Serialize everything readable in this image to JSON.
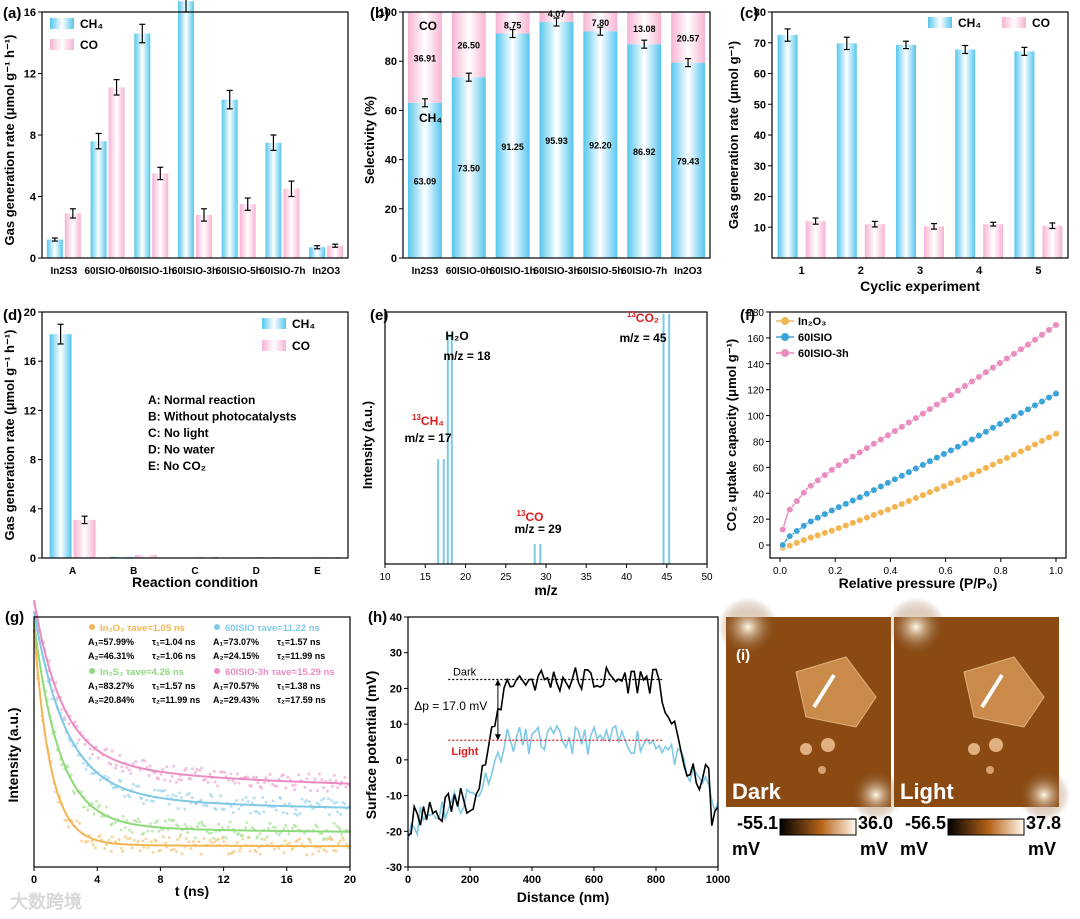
{
  "colors": {
    "ch4": "#55c6ee",
    "co": "#f7b3d2",
    "black": "#000000",
    "orange": "#f2b552",
    "blue": "#3ba3d8",
    "pink": "#ea8cc2",
    "green": "#8ed97a",
    "lightblue": "#7fc8e6",
    "red": "#e01c1c"
  },
  "chart_data": [
    {
      "panel": "(a)",
      "type": "bar",
      "ylabel": "Gas generation rate (μmol g⁻¹ h⁻¹)",
      "ylim": [
        0,
        16
      ],
      "yticks": [
        0,
        4,
        8,
        12,
        16
      ],
      "categories": [
        "In2S3",
        "60ISIO-0h",
        "60ISIO-1h",
        "60ISIO-3h",
        "60ISIO-5h",
        "60ISIO-7h",
        "In2O3"
      ],
      "series": [
        {
          "name": "CH₄",
          "values": [
            1.2,
            7.6,
            14.6,
            16.7,
            10.3,
            7.5,
            0.7
          ],
          "errors": [
            0.1,
            0.5,
            0.6,
            0.7,
            0.6,
            0.5,
            0.1
          ]
        },
        {
          "name": "CO",
          "values": [
            2.9,
            11.1,
            5.5,
            2.8,
            3.5,
            4.5,
            0.8
          ],
          "errors": [
            0.3,
            0.5,
            0.4,
            0.4,
            0.4,
            0.5,
            0.1
          ]
        }
      ],
      "legend": "top-left"
    },
    {
      "panel": "(b)",
      "type": "bar",
      "ylabel": "Selectivity (%)",
      "ylim": [
        0,
        100
      ],
      "yticks": [
        0,
        20,
        40,
        60,
        80,
        100
      ],
      "categories": [
        "In2S3",
        "60ISIO-0h",
        "60ISIO-1h",
        "60ISIO-3h",
        "60ISIO-5h",
        "60ISIO-7h",
        "In2O3"
      ],
      "series": [
        {
          "name": "CH₄",
          "values": [
            63.09,
            73.5,
            91.25,
            95.93,
            92.2,
            86.92,
            79.43
          ],
          "labels": [
            "63.09",
            "73.50",
            "91.25",
            "95.93",
            "92.20",
            "86.92",
            "79.43"
          ]
        },
        {
          "name": "CO",
          "values": [
            36.91,
            26.5,
            8.75,
            4.07,
            7.8,
            13.08,
            20.57
          ],
          "labels": [
            "36.91",
            "26.50",
            "8.75",
            "4.07",
            "7.80",
            "13.08",
            "20.57"
          ]
        }
      ],
      "stacked": true
    },
    {
      "panel": "(c)",
      "type": "bar",
      "xlabel": "Cyclic experiment",
      "ylabel": "Gas generation rate (μmol g⁻¹)",
      "ylim": [
        0,
        80
      ],
      "yticks": [
        10,
        20,
        30,
        40,
        50,
        60,
        70,
        80
      ],
      "categories": [
        "1",
        "2",
        "3",
        "4",
        "5"
      ],
      "series": [
        {
          "name": "CH₄",
          "values": [
            72.5,
            69.8,
            69.3,
            67.8,
            67.2
          ],
          "errors": [
            2.0,
            2.0,
            1.2,
            1.3,
            1.3
          ]
        },
        {
          "name": "CO",
          "values": [
            12.0,
            11.0,
            10.3,
            11.0,
            10.5
          ],
          "errors": [
            1.0,
            0.9,
            0.9,
            0.6,
            0.9
          ]
        }
      ],
      "legend": "top-right"
    },
    {
      "panel": "(d)",
      "type": "bar",
      "xlabel": "Reaction condition",
      "ylabel": "Gas generation rate (μmol g⁻¹ h⁻¹)",
      "ylim": [
        0,
        20
      ],
      "yticks": [
        0,
        4,
        8,
        12,
        16,
        20
      ],
      "categories": [
        "A",
        "B",
        "C",
        "D",
        "E"
      ],
      "series": [
        {
          "name": "CH₄",
          "values": [
            18.2,
            0.1,
            0.05,
            0.05,
            0.05
          ],
          "errors": [
            0.8,
            0,
            0,
            0,
            0
          ]
        },
        {
          "name": "CO",
          "values": [
            3.1,
            0.25,
            0.1,
            0.08,
            0.08
          ],
          "errors": [
            0.3,
            0,
            0,
            0,
            0
          ]
        }
      ],
      "annotations": [
        "A: Normal reaction",
        "B: Without photocatalysts",
        "C: No light",
        "D: No water",
        "E: No CO₂"
      ],
      "legend": "top-right"
    },
    {
      "panel": "(e)",
      "type": "bar",
      "xlabel": "m/z",
      "ylabel": "Intensity (a.u.)",
      "xlim": [
        10,
        50
      ],
      "xticks": [
        10,
        15,
        20,
        25,
        30,
        35,
        40,
        45,
        50
      ],
      "peaks": [
        {
          "x": 16.6,
          "y": 0.42
        },
        {
          "x": 17.3,
          "y": 0.42
        },
        {
          "x": 17.8,
          "y": 0.92
        },
        {
          "x": 18.3,
          "y": 0.92
        },
        {
          "x": 28.6,
          "y": 0.08
        },
        {
          "x": 29.3,
          "y": 0.08
        },
        {
          "x": 44.6,
          "y": 1.0
        },
        {
          "x": 45.3,
          "y": 1.0
        }
      ],
      "labels": [
        {
          "iso": "13",
          "name": "CH₄",
          "mz": "m/z = 17"
        },
        {
          "iso": "",
          "name": "H₂O",
          "mz": "m/z = 18"
        },
        {
          "iso": "13",
          "name": "CO",
          "mz": "m/z = 29"
        },
        {
          "iso": "13",
          "name": "CO₂",
          "mz": "m/z = 45"
        }
      ]
    },
    {
      "panel": "(f)",
      "type": "line",
      "xlabel": "Relative pressure (P/P₀)",
      "ylabel": "CO₂ uptake capacity (μmol g⁻¹)",
      "xlim": [
        0,
        1.0
      ],
      "ylim": [
        -10,
        180
      ],
      "xticks": [
        0.0,
        0.2,
        0.4,
        0.6,
        0.8,
        1.0
      ],
      "yticks": [
        0,
        20,
        40,
        60,
        80,
        100,
        120,
        140,
        160,
        180
      ],
      "series": [
        {
          "name": "In₂O₃",
          "color": "#f2b552",
          "points": [
            [
              0.01,
              -2
            ],
            [
              0.03,
              -1
            ],
            [
              0.1,
              5
            ],
            [
              0.2,
              12
            ],
            [
              0.3,
              20
            ],
            [
              0.4,
              28
            ],
            [
              0.5,
              37
            ],
            [
              0.6,
              46
            ],
            [
              0.7,
              55
            ],
            [
              0.8,
              65
            ],
            [
              0.9,
              75
            ],
            [
              1.0,
              86
            ]
          ]
        },
        {
          "name": "60ISIO",
          "color": "#3ba3d8",
          "points": [
            [
              0.01,
              0
            ],
            [
              0.03,
              6
            ],
            [
              0.1,
              17
            ],
            [
              0.2,
              28
            ],
            [
              0.3,
              38
            ],
            [
              0.4,
              49
            ],
            [
              0.5,
              60
            ],
            [
              0.6,
              71
            ],
            [
              0.7,
              82
            ],
            [
              0.8,
              94
            ],
            [
              0.9,
              105
            ],
            [
              1.0,
              117
            ]
          ]
        },
        {
          "name": "60ISIO-3h",
          "color": "#ea8cc2",
          "points": [
            [
              0.01,
              12
            ],
            [
              0.03,
              26
            ],
            [
              0.1,
              44
            ],
            [
              0.2,
              60
            ],
            [
              0.3,
              73
            ],
            [
              0.4,
              86
            ],
            [
              0.5,
              99
            ],
            [
              0.6,
              113
            ],
            [
              0.7,
              127
            ],
            [
              0.8,
              141
            ],
            [
              0.9,
              155
            ],
            [
              1.0,
              170
            ]
          ]
        }
      ],
      "legend": "top-left"
    },
    {
      "panel": "(g)",
      "type": "scatter",
      "xlabel": "t (ns)",
      "ylabel": "Intensity (a.u.)",
      "xlim": [
        0,
        20
      ],
      "xticks": [
        0,
        4,
        8,
        12,
        16,
        20
      ],
      "series": [
        {
          "name": "In₂O₃",
          "color": "#f2b552",
          "tau_ave": "τave=1.05 ns",
          "A1": "A₁=57.99%",
          "t1": "τ₁=1.04 ns",
          "A2": "A₂=46.31%",
          "t2": "τ₂=1.06 ns",
          "decay": [
            1.04,
            0.02
          ]
        },
        {
          "name": "60ISIO",
          "color": "#7fc8e6",
          "tau_ave": "τave=11.22 ns",
          "A1": "A₁=73.07%",
          "t1": "τ₁=1.57 ns",
          "A2": "A₂=24.15%",
          "t2": "τ₂=11.99 ns",
          "decay": [
            2.0,
            0.18
          ]
        },
        {
          "name": "In₂S₃",
          "color": "#8ed97a",
          "tau_ave": "τave=4.26 ns",
          "A1": "A₁=83.27%",
          "t1": "τ₁=1.57 ns",
          "A2": "A₂=20.84%",
          "t2": "τ₂=11.99 ns",
          "decay": [
            1.6,
            0.08
          ]
        },
        {
          "name": "60ISIO-3h",
          "color": "#ea8cc2",
          "tau_ave": "τave=15.29 ns",
          "A1": "A₁=70.57%",
          "t1": "τ₁=1.38 ns",
          "A2": "A₂=29.43%",
          "t2": "τ₂=17.59 ns",
          "decay": [
            1.8,
            0.28
          ]
        }
      ]
    },
    {
      "panel": "(h)",
      "type": "line",
      "xlabel": "Distance (nm)",
      "ylabel": "Surface potential (mV)",
      "xlim": [
        0,
        1000
      ],
      "ylim": [
        -30,
        40
      ],
      "xticks": [
        0,
        200,
        400,
        600,
        800,
        1000
      ],
      "yticks": [
        -30,
        -20,
        -10,
        0,
        10,
        20,
        30,
        40
      ],
      "annotation": "Δp = 17.0 mV",
      "dark_level": 22.5,
      "light_level": 5.5,
      "series": [
        {
          "name": "Dark",
          "color": "#000000"
        },
        {
          "name": "Light",
          "color": "#7fc8e6"
        }
      ]
    }
  ],
  "panel_i": {
    "label": "(i)",
    "dark": {
      "title": "Dark",
      "min": "-55.1",
      "max": "36.0",
      "unit": "mV"
    },
    "light": {
      "title": "Light",
      "min": "-56.5",
      "max": "37.8",
      "unit": "mV"
    }
  },
  "watermark": "大数跨境"
}
